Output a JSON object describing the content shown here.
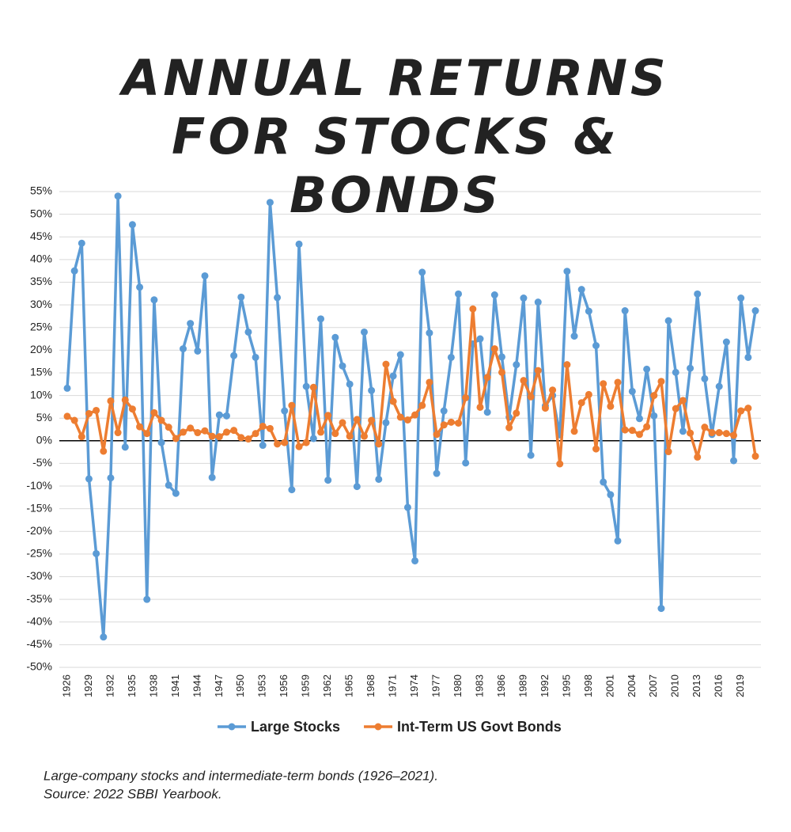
{
  "chart_data": {
    "type": "line",
    "title": "ANNUAL RETURNS FOR STOCKS & BONDS",
    "notes": [
      "Large-company stocks and intermediate-term bonds (1926–2021).",
      "Source: 2022 SBBI Yearbook."
    ],
    "x": [
      1926,
      1927,
      1928,
      1929,
      1930,
      1931,
      1932,
      1933,
      1934,
      1935,
      1936,
      1937,
      1938,
      1939,
      1940,
      1941,
      1942,
      1943,
      1944,
      1945,
      1946,
      1947,
      1948,
      1949,
      1950,
      1951,
      1952,
      1953,
      1954,
      1955,
      1956,
      1957,
      1958,
      1959,
      1960,
      1961,
      1962,
      1963,
      1964,
      1965,
      1966,
      1967,
      1968,
      1969,
      1970,
      1971,
      1972,
      1973,
      1974,
      1975,
      1976,
      1977,
      1978,
      1979,
      1980,
      1981,
      1982,
      1983,
      1984,
      1985,
      1986,
      1987,
      1988,
      1989,
      1990,
      1991,
      1992,
      1993,
      1994,
      1995,
      1996,
      1997,
      1998,
      1999,
      2000,
      2001,
      2002,
      2003,
      2004,
      2005,
      2006,
      2007,
      2008,
      2009,
      2010,
      2011,
      2012,
      2013,
      2014,
      2015,
      2016,
      2017,
      2018,
      2019,
      2020,
      2021
    ],
    "xlim": [
      1926,
      2021
    ],
    "xticks": [
      1926,
      1929,
      1932,
      1935,
      1938,
      1941,
      1944,
      1947,
      1950,
      1953,
      1956,
      1959,
      1962,
      1965,
      1968,
      1971,
      1974,
      1977,
      1980,
      1983,
      1986,
      1989,
      1992,
      1995,
      1998,
      2001,
      2004,
      2007,
      2010,
      2013,
      2016,
      2019
    ],
    "ylim": [
      -50,
      55
    ],
    "yticks": [
      {
        "value": -50,
        "label": "-50%"
      },
      {
        "value": -45,
        "label": "-45%"
      },
      {
        "value": -40,
        "label": "-40%"
      },
      {
        "value": -35,
        "label": "-35%"
      },
      {
        "value": -30,
        "label": "-30%"
      },
      {
        "value": -25,
        "label": "-25%"
      },
      {
        "value": -20,
        "label": "-20%"
      },
      {
        "value": -15,
        "label": "-15%"
      },
      {
        "value": -10,
        "label": "-10%"
      },
      {
        "value": -5,
        "label": "-5%"
      },
      {
        "value": 0,
        "label": "0%"
      },
      {
        "value": 5,
        "label": "5%"
      },
      {
        "value": 10,
        "label": "10%"
      },
      {
        "value": 15,
        "label": "15%"
      },
      {
        "value": 20,
        "label": "20%"
      },
      {
        "value": 25,
        "label": "25%"
      },
      {
        "value": 30,
        "label": "30%"
      },
      {
        "value": 35,
        "label": "35%"
      },
      {
        "value": 40,
        "label": "40%"
      },
      {
        "value": 45,
        "label": "45%"
      },
      {
        "value": 50,
        "label": "50%"
      },
      {
        "value": 55,
        "label": "55%"
      }
    ],
    "grid": true,
    "legend": "bottom",
    "series": [
      {
        "name": "Large Stocks",
        "color": "#5b9bd5",
        "values": [
          11.6,
          37.5,
          43.6,
          -8.4,
          -24.9,
          -43.3,
          -8.2,
          54.0,
          -1.4,
          47.7,
          33.9,
          -35.0,
          31.1,
          -0.4,
          -9.8,
          -11.6,
          20.3,
          25.9,
          19.8,
          36.4,
          -8.1,
          5.7,
          5.5,
          18.8,
          31.7,
          24.0,
          18.4,
          -1.0,
          52.6,
          31.6,
          6.6,
          -10.8,
          43.4,
          12.0,
          0.5,
          26.9,
          -8.7,
          22.8,
          16.5,
          12.5,
          -10.1,
          24.0,
          11.1,
          -8.5,
          4.0,
          14.3,
          19.0,
          -14.7,
          -26.5,
          37.2,
          23.8,
          -7.2,
          6.6,
          18.4,
          32.4,
          -4.9,
          21.4,
          22.5,
          6.3,
          32.2,
          18.5,
          5.2,
          16.8,
          31.5,
          -3.2,
          30.6,
          7.7,
          10.0,
          1.3,
          37.4,
          23.1,
          33.4,
          28.6,
          21.0,
          -9.1,
          -11.9,
          -22.1,
          28.7,
          10.9,
          4.9,
          15.8,
          5.5,
          -37.0,
          26.5,
          15.1,
          2.1,
          16.0,
          32.4,
          13.7,
          1.4,
          12.0,
          21.8,
          -4.4,
          31.5,
          18.4,
          28.7
        ]
      },
      {
        "name": "Int-Term US Govt Bonds",
        "color": "#ed7d31",
        "values": [
          5.4,
          4.5,
          0.9,
          6.0,
          6.7,
          -2.3,
          8.8,
          1.8,
          9.0,
          7.0,
          3.1,
          1.6,
          6.2,
          4.5,
          3.0,
          0.5,
          1.9,
          2.8,
          1.8,
          2.2,
          1.0,
          0.9,
          1.9,
          2.3,
          0.7,
          0.4,
          1.6,
          3.2,
          2.7,
          -0.7,
          -0.4,
          7.8,
          -1.3,
          -0.4,
          11.8,
          1.9,
          5.6,
          1.6,
          4.0,
          1.0,
          4.7,
          1.0,
          4.5,
          -0.7,
          16.9,
          8.7,
          5.2,
          4.6,
          5.7,
          7.8,
          12.9,
          1.4,
          3.5,
          4.1,
          3.9,
          9.5,
          29.1,
          7.4,
          14.0,
          20.3,
          15.1,
          2.9,
          6.1,
          13.3,
          9.7,
          15.5,
          7.2,
          11.2,
          -5.1,
          16.8,
          2.1,
          8.4,
          10.2,
          -1.8,
          12.6,
          7.6,
          12.9,
          2.4,
          2.3,
          1.4,
          3.1,
          10.0,
          13.1,
          -2.4,
          7.1,
          8.9,
          1.7,
          -3.6,
          3.0,
          1.8,
          1.8,
          1.6,
          1.2,
          6.6,
          7.2,
          -3.4
        ]
      }
    ]
  }
}
